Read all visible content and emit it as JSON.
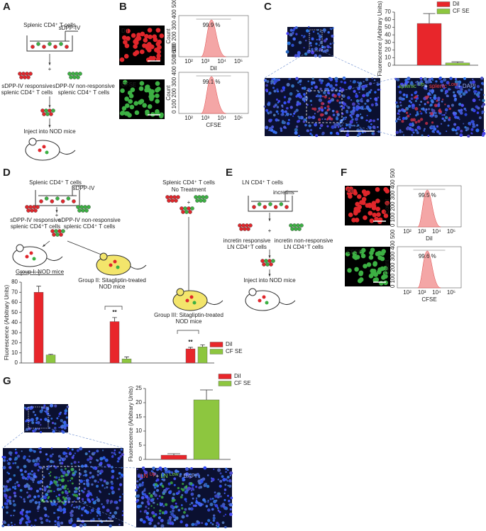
{
  "panel_labels": [
    "A",
    "B",
    "C",
    "D",
    "E",
    "F",
    "G"
  ],
  "A": {
    "title": "Splenic CD4⁺ T cells",
    "treatment": "sDPP-IV",
    "plus": "+",
    "responsive": [
      "sDPP-IV responsive",
      "splenic CD4⁺ T cells"
    ],
    "nonresponsive": [
      "sDPP-IV non-responsive",
      "splenic CD4⁺ T cells"
    ],
    "inject": "Inject into NOD mice"
  },
  "B": {
    "histograms": [
      {
        "image_label": "DiI",
        "percent": "99.9 %",
        "ylabel": "Count",
        "yticks": "0 100 200 300 400 500",
        "xlabel": "DiI",
        "xticks": [
          "10²",
          "10³",
          "10⁴",
          "10⁵"
        ]
      },
      {
        "image_label": "CFSE",
        "percent": "99.1 %",
        "ylabel": "Count",
        "yticks": "0 100 200 300 400 500 600",
        "xlabel": "CFSE",
        "xticks": [
          "10²",
          "10³",
          "10⁴",
          "10⁵"
        ]
      }
    ]
  },
  "C": {
    "micrograph_label": [
      {
        "text": "splenic ",
        "color": "#7ddc4a"
      },
      {
        "text": "Up",
        "color": "#7ddc4a"
      },
      {
        "text": "+ ",
        "color": "#ffffff"
      },
      {
        "text": "splenic ",
        "color": "#ff3b3b"
      },
      {
        "text": "Low",
        "color": "#ff3b3b"
      },
      {
        "text": "+ DAPI",
        "color": "#9fb4ff"
      }
    ]
  },
  "D": {
    "title": "Splenic CD4⁺ T cells",
    "treatment": "sDPP-IV",
    "plus": "+",
    "responsive": [
      "sDPP-IV responsive",
      "splenic CD4⁺T cells"
    ],
    "nonresponsive": [
      "sDPP-IV non-responsive",
      "splenic CD4⁺ T cells"
    ],
    "group1": "Group I: NOD mice",
    "group2": [
      "Group II: Sitagliptin-treated",
      "NOD mice"
    ],
    "title3": "Splenic CD4⁺ T cells",
    "no_treatment": "No Treatment",
    "plus3": "+",
    "group3": [
      "Group III: Sitagliptin-treated",
      "NOD mice"
    ]
  },
  "E": {
    "title": "LN CD4⁺ T cells",
    "treatment": "incretins",
    "plus": "+",
    "responsive": [
      "incretin responsive",
      "LN CD4⁺T cells"
    ],
    "nonresponsive": [
      "incretin non-responsive",
      "LN CD4⁺T cells"
    ],
    "inject": "Inject into NOD mice"
  },
  "F": {
    "histograms": [
      {
        "image_label": "DiI",
        "percent": "99.5 %",
        "ylabel": "Count",
        "yticks": "0 100 200 300 400 500",
        "xlabel": "DiI",
        "xticks": [
          "10²",
          "10³",
          "10⁴",
          "10⁵"
        ]
      },
      {
        "image_label": "CFSE",
        "percent": "99.6 %",
        "ylabel": "Count",
        "yticks": "0 100 200 300 400 500",
        "xlabel": "CFSE",
        "xticks": [
          "10²",
          "10³",
          "10⁴",
          "10⁵"
        ]
      }
    ]
  },
  "G": {
    "micrograph_label": [
      {
        "text": "LN ",
        "color": "#ff3b3b"
      },
      {
        "text": "Up",
        "color": "#ff3b3b"
      },
      {
        "text": "+ ",
        "color": "#ffffff"
      },
      {
        "text": "LN ",
        "color": "#7ddc4a"
      },
      {
        "text": "Low",
        "color": "#7ddc4a"
      },
      {
        "text": "+ DAPI",
        "color": "#9fb4ff"
      }
    ]
  },
  "chart_data": [
    {
      "type": "bar",
      "ylabel": "Fluorescence (Arbitrary Units)",
      "ylim": [
        0,
        70
      ],
      "yticks": [
        0,
        10,
        20,
        30,
        40,
        50,
        60,
        70
      ],
      "legend": "upper right",
      "series": [
        {
          "name": "DiI",
          "color": "#e8262b",
          "values": [
            55
          ],
          "errors": [
            13
          ]
        },
        {
          "name": "CF SE",
          "color": "#8dc63f",
          "values": [
            3
          ],
          "errors": [
            1.5
          ]
        }
      ]
    },
    {
      "type": "bar",
      "ylabel": "Fluorescence (Arbitrary Units)",
      "ylim": [
        0,
        80
      ],
      "yticks": [
        0,
        10,
        20,
        30,
        40,
        50,
        60,
        70,
        80
      ],
      "legend": "lower right",
      "series": [
        {
          "name": "DiI",
          "color": "#e8262b",
          "values": [
            70,
            41,
            14
          ],
          "errors": [
            6,
            4,
            1.5
          ]
        },
        {
          "name": "CF SE",
          "color": "#8dc63f",
          "values": [
            8,
            4,
            16
          ],
          "errors": [
            0.6,
            2,
            2
          ]
        }
      ],
      "annotations": [
        {
          "text": "**",
          "category": 1
        },
        {
          "text": "**",
          "category": 2
        }
      ]
    },
    {
      "type": "bar",
      "ylabel": "Fluorescence (Arbitrary Units)",
      "ylim": [
        0,
        25
      ],
      "yticks": [
        0,
        5,
        10,
        15,
        20,
        25
      ],
      "legend": "upper left",
      "series": [
        {
          "name": "DiI",
          "color": "#e8262b",
          "values": [
            1.5
          ],
          "errors": [
            0.5
          ]
        },
        {
          "name": "CF SE",
          "color": "#8dc63f",
          "values": [
            21
          ],
          "errors": [
            3.5
          ]
        }
      ]
    }
  ]
}
